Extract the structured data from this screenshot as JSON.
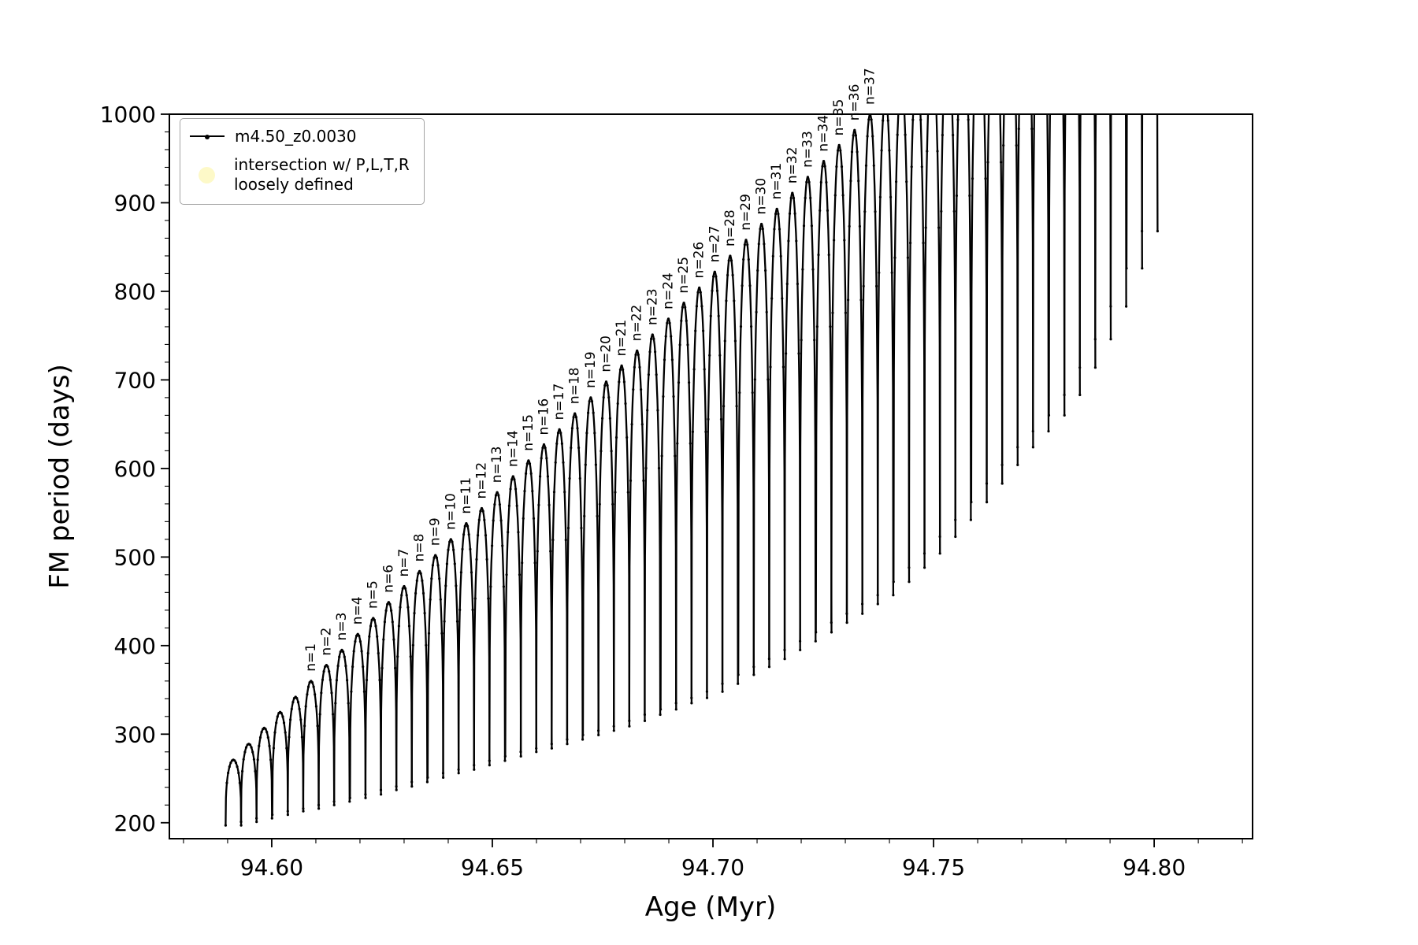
{
  "chart_data": {
    "type": "line",
    "title": "",
    "xlabel": "Age (Myr)",
    "ylabel": "FM period (days)",
    "xlim": [
      94.5768,
      94.8223
    ],
    "ylim": [
      182,
      1000
    ],
    "x_ticks": [
      94.6,
      94.65,
      94.7,
      94.75,
      94.8
    ],
    "x_minor_step": 0.01,
    "x_minor_start": 94.58,
    "x_minor_end": 94.82,
    "y_ticks": [
      200,
      300,
      400,
      500,
      600,
      700,
      800,
      900,
      1000
    ],
    "y_minor_step": 20,
    "grid": false,
    "legend_position": "upper left",
    "legend": [
      {
        "label": "m4.50_z0.0030",
        "marker": "line-with-dot",
        "color": "#000000"
      },
      {
        "label_line1": "intersection w/ P,L,T,R",
        "label_line2": "loosely defined",
        "marker": "filled-circle",
        "color": "#fdf9c8"
      }
    ],
    "series_name": "m4.50_z0.0030",
    "line_color": "#000000",
    "arch_half_width": 0.00176,
    "arches": [
      {
        "c": 94.5913,
        "peak": 271,
        "base": 197,
        "label": ""
      },
      {
        "c": 94.5948,
        "peak": 289,
        "base": 201,
        "label": ""
      },
      {
        "c": 94.5983,
        "peak": 307,
        "base": 205,
        "label": ""
      },
      {
        "c": 94.6019,
        "peak": 325,
        "base": 209,
        "label": ""
      },
      {
        "c": 94.6054,
        "peak": 342,
        "base": 213,
        "label": ""
      },
      {
        "c": 94.6089,
        "peak": 360,
        "base": 216,
        "label": "n=1"
      },
      {
        "c": 94.6124,
        "peak": 378,
        "base": 220,
        "label": "n=2"
      },
      {
        "c": 94.6159,
        "peak": 395,
        "base": 224,
        "label": "n=3"
      },
      {
        "c": 94.6195,
        "peak": 413,
        "base": 228,
        "label": "n=4"
      },
      {
        "c": 94.623,
        "peak": 431,
        "base": 232,
        "label": "n=5"
      },
      {
        "c": 94.6265,
        "peak": 449,
        "base": 237,
        "label": "n=6"
      },
      {
        "c": 94.63,
        "peak": 467,
        "base": 241,
        "label": "n=7"
      },
      {
        "c": 94.6335,
        "peak": 484,
        "base": 246,
        "label": "n=8"
      },
      {
        "c": 94.6371,
        "peak": 502,
        "base": 251,
        "label": "n=9"
      },
      {
        "c": 94.6406,
        "peak": 520,
        "base": 256,
        "label": "n=10"
      },
      {
        "c": 94.6441,
        "peak": 538,
        "base": 260,
        "label": "n=11"
      },
      {
        "c": 94.6476,
        "peak": 555,
        "base": 265,
        "label": "n=12"
      },
      {
        "c": 94.6511,
        "peak": 573,
        "base": 270,
        "label": "n=13"
      },
      {
        "c": 94.6547,
        "peak": 591,
        "base": 275,
        "label": "n=14"
      },
      {
        "c": 94.6582,
        "peak": 609,
        "base": 280,
        "label": "n=15"
      },
      {
        "c": 94.6617,
        "peak": 627,
        "base": 284,
        "label": "n=16"
      },
      {
        "c": 94.6652,
        "peak": 644,
        "base": 289,
        "label": "n=17"
      },
      {
        "c": 94.6687,
        "peak": 662,
        "base": 294,
        "label": "n=18"
      },
      {
        "c": 94.6723,
        "peak": 680,
        "base": 299,
        "label": "n=19"
      },
      {
        "c": 94.6758,
        "peak": 698,
        "base": 304,
        "label": "n=20"
      },
      {
        "c": 94.6793,
        "peak": 716,
        "base": 309,
        "label": "n=21"
      },
      {
        "c": 94.6828,
        "peak": 733,
        "base": 315,
        "label": "n=22"
      },
      {
        "c": 94.6863,
        "peak": 751,
        "base": 322,
        "label": "n=23"
      },
      {
        "c": 94.6899,
        "peak": 769,
        "base": 328,
        "label": "n=24"
      },
      {
        "c": 94.6934,
        "peak": 787,
        "base": 335,
        "label": "n=25"
      },
      {
        "c": 94.6969,
        "peak": 804,
        "base": 341,
        "label": "n=26"
      },
      {
        "c": 94.7004,
        "peak": 822,
        "base": 348,
        "label": "n=27"
      },
      {
        "c": 94.7039,
        "peak": 840,
        "base": 357,
        "label": "n=28"
      },
      {
        "c": 94.7075,
        "peak": 858,
        "base": 367,
        "label": "n=29"
      },
      {
        "c": 94.711,
        "peak": 876,
        "base": 376,
        "label": "n=30"
      },
      {
        "c": 94.7145,
        "peak": 893,
        "base": 385,
        "label": "n=31"
      },
      {
        "c": 94.718,
        "peak": 911,
        "base": 395,
        "label": "n=32"
      },
      {
        "c": 94.7215,
        "peak": 929,
        "base": 405,
        "label": "n=33"
      },
      {
        "c": 94.7251,
        "peak": 947,
        "base": 415,
        "label": "n=34"
      },
      {
        "c": 94.7286,
        "peak": 965,
        "base": 426,
        "label": "n=35"
      },
      {
        "c": 94.7321,
        "peak": 982,
        "base": 436,
        "label": "n=36"
      },
      {
        "c": 94.7356,
        "peak": 1000,
        "base": 447,
        "label": "n=37"
      },
      {
        "c": 94.7391,
        "peak": 1018,
        "base": 457,
        "label": ""
      },
      {
        "c": 94.7427,
        "peak": 1036,
        "base": 472,
        "label": ""
      },
      {
        "c": 94.7462,
        "peak": 1053,
        "base": 488,
        "label": ""
      },
      {
        "c": 94.7497,
        "peak": 1071,
        "base": 504,
        "label": ""
      },
      {
        "c": 94.7532,
        "peak": 1089,
        "base": 523,
        "label": ""
      },
      {
        "c": 94.7567,
        "peak": 1106,
        "base": 542,
        "label": ""
      },
      {
        "c": 94.7603,
        "peak": 1125,
        "base": 562,
        "label": ""
      },
      {
        "c": 94.7638,
        "peak": 1142,
        "base": 583,
        "label": ""
      },
      {
        "c": 94.7673,
        "peak": 1160,
        "base": 604,
        "label": ""
      },
      {
        "c": 94.7708,
        "peak": 1178,
        "base": 624,
        "label": ""
      },
      {
        "c": 94.7743,
        "peak": 1195,
        "base": 642,
        "label": ""
      },
      {
        "c": 94.7779,
        "peak": 1213,
        "base": 660,
        "label": ""
      },
      {
        "c": 94.7814,
        "peak": 1231,
        "base": 683,
        "label": ""
      },
      {
        "c": 94.7849,
        "peak": 1249,
        "base": 714,
        "label": ""
      },
      {
        "c": 94.7884,
        "peak": 1266,
        "base": 746,
        "label": ""
      },
      {
        "c": 94.7919,
        "peak": 1284,
        "base": 783,
        "label": ""
      },
      {
        "c": 94.7955,
        "peak": 1302,
        "base": 826,
        "label": ""
      },
      {
        "c": 94.799,
        "peak": 1320,
        "base": 868,
        "label": ""
      }
    ]
  },
  "colors": {
    "line": "#000000",
    "axes": "#000000",
    "background": "#ffffff",
    "legend_border": "#a3a3a3",
    "intersection_marker": "#fdf9c8"
  }
}
